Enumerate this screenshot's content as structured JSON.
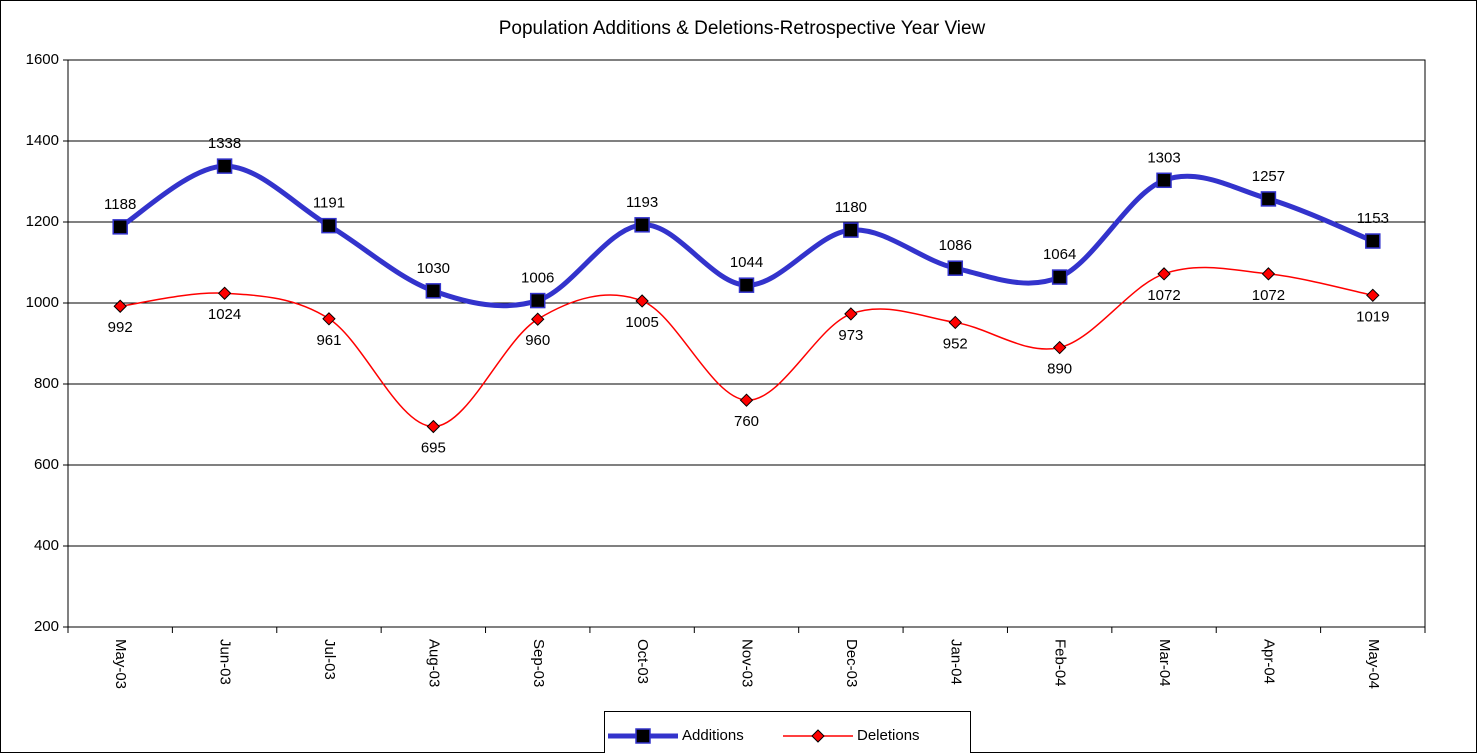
{
  "chart_data": {
    "type": "line",
    "title": "Population Additions & Deletions-Retrospective Year View",
    "categories": [
      "May-03",
      "Jun-03",
      "Jul-03",
      "Aug-03",
      "Sep-03",
      "Oct-03",
      "Nov-03",
      "Dec-03",
      "Jan-04",
      "Feb-04",
      "Mar-04",
      "Apr-04",
      "May-04"
    ],
    "series": [
      {
        "name": "Additions",
        "color": "#3333cc",
        "marker": "square",
        "values": [
          1188,
          1338,
          1191,
          1030,
          1006,
          1193,
          1044,
          1180,
          1086,
          1064,
          1303,
          1257,
          1153
        ]
      },
      {
        "name": "Deletions",
        "color": "#ff0000",
        "marker": "diamond",
        "values": [
          992,
          1024,
          961,
          695,
          960,
          1005,
          760,
          973,
          952,
          890,
          1072,
          1072,
          1019
        ]
      }
    ],
    "ylim": [
      200,
      1600
    ],
    "yticks": [
      200,
      400,
      600,
      800,
      1000,
      1200,
      1400,
      1600
    ],
    "grid": true,
    "smooth": true,
    "legend": "bottom"
  }
}
